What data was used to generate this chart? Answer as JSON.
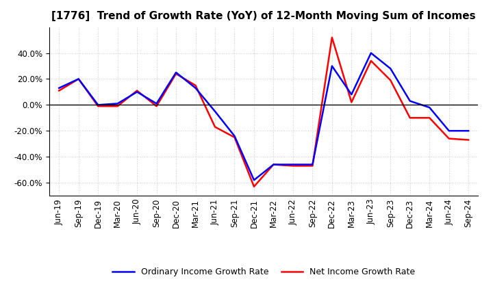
{
  "title": "[1776]  Trend of Growth Rate (YoY) of 12-Month Moving Sum of Incomes",
  "x_labels": [
    "Jun-19",
    "Sep-19",
    "Dec-19",
    "Mar-20",
    "Jun-20",
    "Sep-20",
    "Dec-20",
    "Mar-21",
    "Jun-21",
    "Sep-21",
    "Dec-21",
    "Mar-22",
    "Jun-22",
    "Sep-22",
    "Dec-22",
    "Mar-23",
    "Jun-23",
    "Sep-23",
    "Dec-23",
    "Mar-24",
    "Jun-24",
    "Sep-24"
  ],
  "ordinary_income": [
    13,
    20,
    0,
    1,
    10,
    1,
    25,
    13,
    -5,
    -24,
    -58,
    -46,
    -46,
    -46,
    30,
    8,
    40,
    28,
    3,
    -2,
    -20,
    -20
  ],
  "net_income": [
    11,
    20,
    -1,
    -1,
    11,
    -1,
    24,
    15,
    -17,
    -25,
    -63,
    -46,
    -47,
    -47,
    52,
    2,
    34,
    19,
    -10,
    -10,
    -26,
    -27
  ],
  "ordinary_color": "#0000FF",
  "net_color": "#FF0000",
  "ylim": [
    -70,
    60
  ],
  "yticks": [
    -60,
    -40,
    -20,
    0,
    20,
    40
  ],
  "background_color": "#FFFFFF",
  "plot_bg_color": "#FFFFFF",
  "grid_color": "#AAAAAA",
  "legend_ordinary": "Ordinary Income Growth Rate",
  "legend_net": "Net Income Growth Rate",
  "title_fontsize": 11,
  "tick_fontsize": 8.5,
  "legend_fontsize": 9
}
